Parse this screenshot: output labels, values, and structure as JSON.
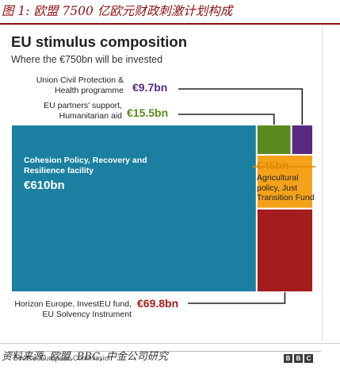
{
  "figure": {
    "title": "图 1: 欧盟 7500 亿欧元财政刺激计划构成",
    "source": "资料来源: 欧盟, BBC, 中金公司研究"
  },
  "chart_data": {
    "type": "treemap",
    "title": "EU stimulus composition",
    "subtitle": "Where the €750bn will be invested",
    "total": 750,
    "unit": "€bn",
    "items": [
      {
        "key": "cohesion",
        "label": "Cohesion Policy, Recovery and Resilience facility",
        "display": "€610bn",
        "value": 610,
        "color": "#1a7fa0"
      },
      {
        "key": "partners",
        "label": "EU partners' support, Humanitarian aid",
        "display": "€15.5bn",
        "value": 15.5,
        "color": "#5a8a1f"
      },
      {
        "key": "civil",
        "label": "Union Civil Protection & Health programme",
        "display": "€9.7bn",
        "value": 9.7,
        "color": "#5a2a82"
      },
      {
        "key": "agri",
        "label": "Agricultural policy, Just Transition Fund",
        "display": "€45bn",
        "value": 45,
        "color": "#f5a21b"
      },
      {
        "key": "horizon",
        "label": "Horizon Europe, InvestEU fund, EU Solvency Instrument",
        "display": "€69.8bn",
        "value": 69.8,
        "color": "#a51c1c"
      }
    ],
    "source": "Source: European Commission",
    "logo_text": "BBC"
  },
  "colors": {
    "figure_title": "#8a1010",
    "civil_value": "#5a2a82",
    "partners_value": "#5a8a1f",
    "agri_value": "#e08a00",
    "horizon_value": "#a51c1c"
  }
}
